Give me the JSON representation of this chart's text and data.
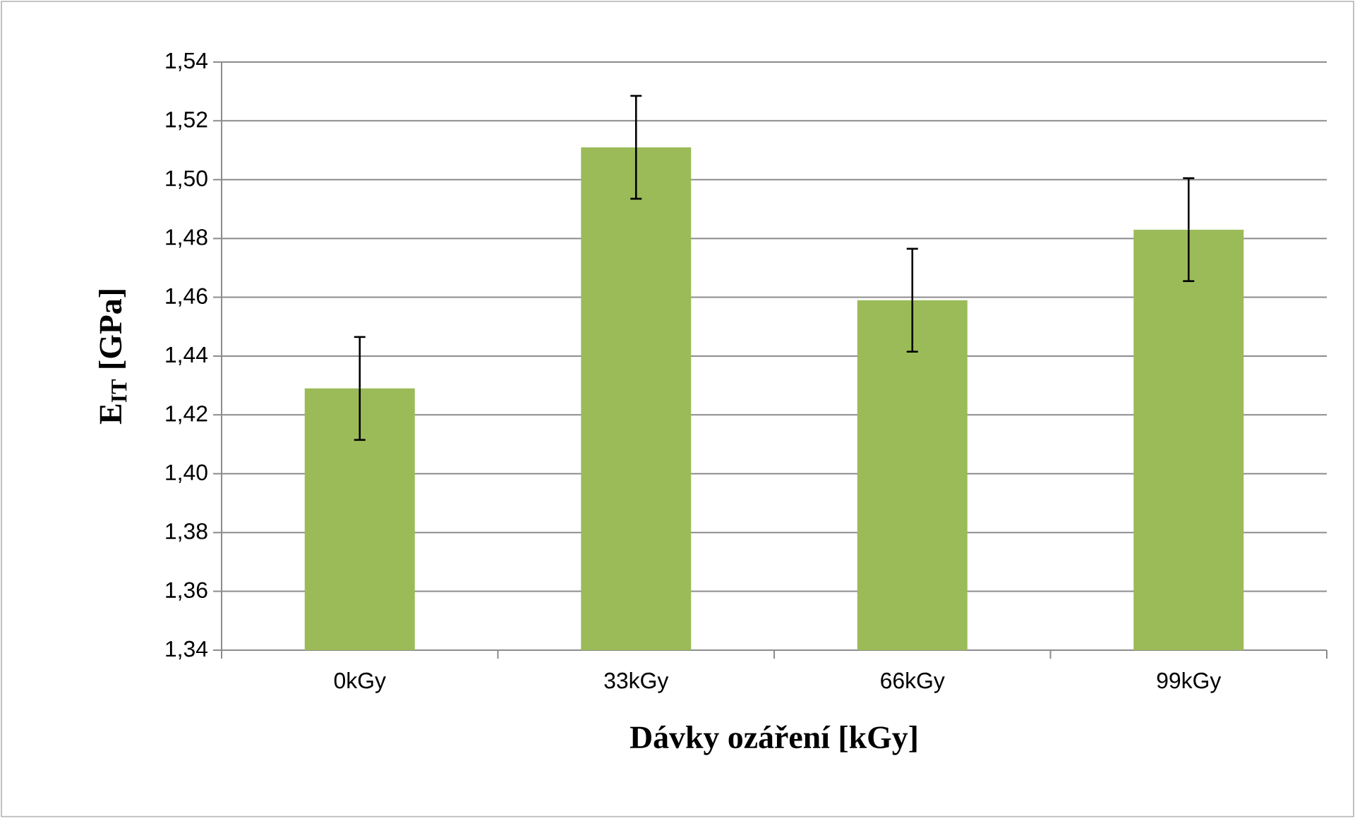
{
  "chart_data": {
    "type": "bar",
    "xlabel": "Dávky ozáření [kGy]",
    "ylabel": "E$_{IT}$ [GPa]",
    "categories": [
      "0kGy",
      "33kGy",
      "66kGy",
      "99kGy"
    ],
    "values": [
      1.429,
      1.511,
      1.459,
      1.483
    ],
    "errors": [
      0.0175,
      0.0175,
      0.0175,
      0.0175
    ],
    "color": "#9bbb59",
    "ylim": [
      1.34,
      1.54
    ],
    "yticks": [
      {
        "value": 1.34,
        "label": "1,34"
      },
      {
        "value": 1.36,
        "label": "1,36"
      },
      {
        "value": 1.38,
        "label": "1,38"
      },
      {
        "value": 1.4,
        "label": "1,40"
      },
      {
        "value": 1.42,
        "label": "1,42"
      },
      {
        "value": 1.44,
        "label": "1,44"
      },
      {
        "value": 1.46,
        "label": "1,46"
      },
      {
        "value": 1.48,
        "label": "1,48"
      },
      {
        "value": 1.5,
        "label": "1,50"
      },
      {
        "value": 1.52,
        "label": "1,52"
      },
      {
        "value": 1.54,
        "label": "1,54"
      }
    ],
    "grid": "y"
  }
}
